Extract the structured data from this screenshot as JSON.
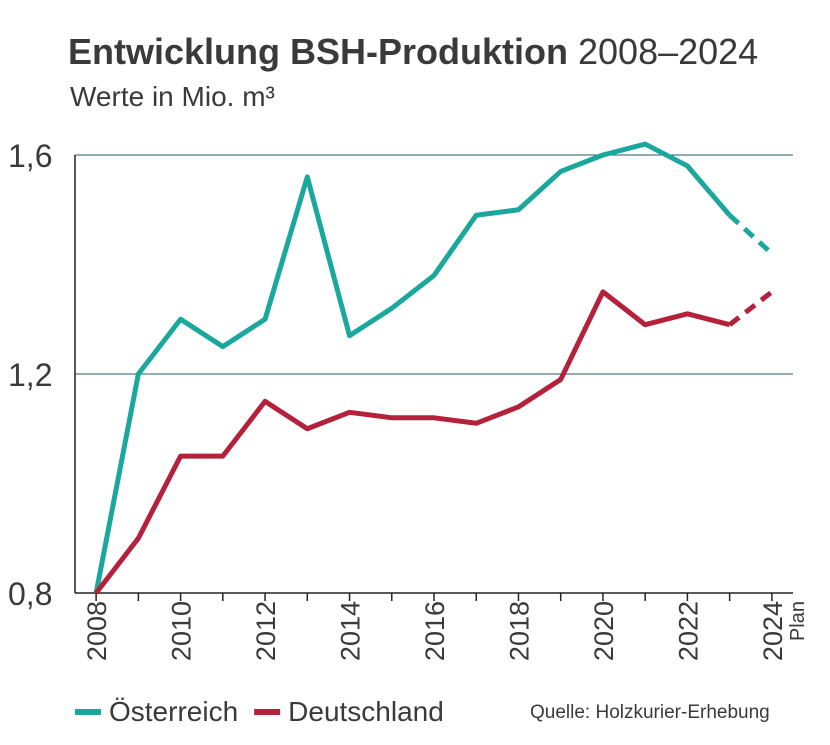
{
  "chart_data": {
    "type": "line",
    "title": "Entwicklung BSH-Produktion",
    "title_range": "2008–2024",
    "subtitle": "Werte in Mio. m³",
    "x": [
      2008,
      2009,
      2010,
      2011,
      2012,
      2013,
      2014,
      2015,
      2016,
      2017,
      2018,
      2019,
      2020,
      2021,
      2022,
      2023,
      2024
    ],
    "series": [
      {
        "name": "Österreich",
        "color": "#1aa89c",
        "values": [
          0.8,
          1.2,
          1.3,
          1.25,
          1.3,
          1.56,
          1.27,
          1.32,
          1.38,
          1.49,
          1.5,
          1.57,
          1.6,
          1.62,
          1.58,
          1.49,
          1.42
        ]
      },
      {
        "name": "Deutschland",
        "color": "#b5203a",
        "values": [
          0.8,
          0.9,
          1.05,
          1.05,
          1.15,
          1.1,
          1.13,
          1.12,
          1.12,
          1.11,
          1.14,
          1.19,
          1.35,
          1.29,
          1.31,
          1.29,
          1.35
        ]
      }
    ],
    "dashed_from": 2023,
    "plan_label": "Plan",
    "xlim": [
      2007.5,
      2024.5
    ],
    "xticks": [
      2008,
      2010,
      2012,
      2014,
      2016,
      2018,
      2020,
      2022,
      2024
    ],
    "xminorticks": [
      2009,
      2011,
      2013,
      2015,
      2017,
      2019,
      2021,
      2023
    ],
    "ylim": [
      0.8,
      1.6
    ],
    "yticks": [
      {
        "value": 0.8,
        "label": "0,8"
      },
      {
        "value": 1.2,
        "label": "1,2"
      },
      {
        "value": 1.6,
        "label": "1,6"
      }
    ],
    "grid": true,
    "source": "Quelle: Holzkurier-Erhebung"
  }
}
